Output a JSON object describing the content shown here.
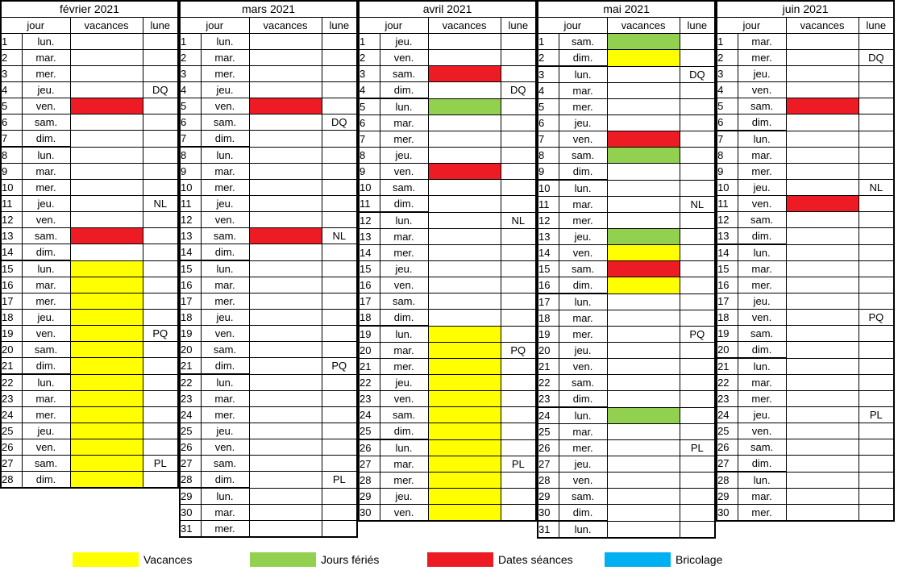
{
  "colors": {
    "vacances": "#ffff00",
    "ferie": "#92d050",
    "seance": "#ed1c24",
    "bricolage": "#00b0f0"
  },
  "headers": {
    "jour": "jour",
    "vacances": "vacances",
    "lune": "lune"
  },
  "legend": [
    {
      "key": "vacances",
      "label": "Vacances"
    },
    {
      "key": "ferie",
      "label": "Jours fériés"
    },
    {
      "key": "seance",
      "label": "Dates séances"
    },
    {
      "key": "bricolage",
      "label": "Bricolage"
    }
  ],
  "months": [
    {
      "title": "février 2021",
      "days": [
        [
          1,
          "lun.",
          "",
          ""
        ],
        [
          2,
          "mar.",
          "",
          ""
        ],
        [
          3,
          "mer.",
          "",
          ""
        ],
        [
          4,
          "jeu.",
          "",
          "DQ"
        ],
        [
          5,
          "ven.",
          "seance",
          ""
        ],
        [
          6,
          "sam.",
          "",
          ""
        ],
        [
          7,
          "dim.",
          "",
          ""
        ],
        [
          8,
          "lun.",
          "",
          ""
        ],
        [
          9,
          "mar.",
          "",
          ""
        ],
        [
          10,
          "mer.",
          "",
          ""
        ],
        [
          11,
          "jeu.",
          "",
          "NL"
        ],
        [
          12,
          "ven.",
          "",
          ""
        ],
        [
          13,
          "sam.",
          "seance",
          ""
        ],
        [
          14,
          "dim.",
          "",
          ""
        ],
        [
          15,
          "lun.",
          "vacances",
          ""
        ],
        [
          16,
          "mar.",
          "vacances",
          ""
        ],
        [
          17,
          "mer.",
          "vacances",
          ""
        ],
        [
          18,
          "jeu.",
          "vacances",
          ""
        ],
        [
          19,
          "ven.",
          "vacances",
          "PQ"
        ],
        [
          20,
          "sam.",
          "vacances",
          ""
        ],
        [
          21,
          "dim.",
          "vacances",
          ""
        ],
        [
          22,
          "lun.",
          "vacances",
          ""
        ],
        [
          23,
          "mar.",
          "vacances",
          ""
        ],
        [
          24,
          "mer.",
          "vacances",
          ""
        ],
        [
          25,
          "jeu.",
          "vacances",
          ""
        ],
        [
          26,
          "ven.",
          "vacances",
          ""
        ],
        [
          27,
          "sam.",
          "vacances",
          "PL"
        ],
        [
          28,
          "dim.",
          "vacances",
          ""
        ]
      ]
    },
    {
      "title": "mars 2021",
      "days": [
        [
          1,
          "lun.",
          "",
          ""
        ],
        [
          2,
          "mar.",
          "",
          ""
        ],
        [
          3,
          "mer.",
          "",
          ""
        ],
        [
          4,
          "jeu.",
          "",
          ""
        ],
        [
          5,
          "ven.",
          "seance",
          ""
        ],
        [
          6,
          "sam.",
          "",
          "DQ"
        ],
        [
          7,
          "dim.",
          "",
          ""
        ],
        [
          8,
          "lun.",
          "",
          ""
        ],
        [
          9,
          "mar.",
          "",
          ""
        ],
        [
          10,
          "mer.",
          "",
          ""
        ],
        [
          11,
          "jeu.",
          "",
          ""
        ],
        [
          12,
          "ven.",
          "",
          ""
        ],
        [
          13,
          "sam.",
          "seance",
          "NL"
        ],
        [
          14,
          "dim.",
          "",
          ""
        ],
        [
          15,
          "lun.",
          "",
          ""
        ],
        [
          16,
          "mar.",
          "",
          ""
        ],
        [
          17,
          "mer.",
          "",
          ""
        ],
        [
          18,
          "jeu.",
          "",
          ""
        ],
        [
          19,
          "ven.",
          "",
          ""
        ],
        [
          20,
          "sam.",
          "",
          ""
        ],
        [
          21,
          "dim.",
          "",
          "PQ"
        ],
        [
          22,
          "lun.",
          "",
          ""
        ],
        [
          23,
          "mar.",
          "",
          ""
        ],
        [
          24,
          "mer.",
          "",
          ""
        ],
        [
          25,
          "jeu.",
          "",
          ""
        ],
        [
          26,
          "ven.",
          "",
          ""
        ],
        [
          27,
          "sam.",
          "",
          ""
        ],
        [
          28,
          "dim.",
          "",
          "PL"
        ],
        [
          29,
          "lun.",
          "",
          ""
        ],
        [
          30,
          "mar.",
          "",
          ""
        ],
        [
          31,
          "mer.",
          "",
          ""
        ]
      ]
    },
    {
      "title": "avril 2021",
      "days": [
        [
          1,
          "jeu.",
          "",
          ""
        ],
        [
          2,
          "ven.",
          "",
          ""
        ],
        [
          3,
          "sam.",
          "seance",
          ""
        ],
        [
          4,
          "dim.",
          "",
          "DQ"
        ],
        [
          5,
          "lun.",
          "ferie",
          ""
        ],
        [
          6,
          "mar.",
          "",
          ""
        ],
        [
          7,
          "mer.",
          "",
          ""
        ],
        [
          8,
          "jeu.",
          "",
          ""
        ],
        [
          9,
          "ven.",
          "seance",
          ""
        ],
        [
          10,
          "sam.",
          "",
          ""
        ],
        [
          11,
          "dim.",
          "",
          ""
        ],
        [
          12,
          "lun.",
          "",
          "NL"
        ],
        [
          13,
          "mar.",
          "",
          ""
        ],
        [
          14,
          "mer.",
          "",
          ""
        ],
        [
          15,
          "jeu.",
          "",
          ""
        ],
        [
          16,
          "ven.",
          "",
          ""
        ],
        [
          17,
          "sam.",
          "",
          ""
        ],
        [
          18,
          "dim.",
          "",
          ""
        ],
        [
          19,
          "lun.",
          "vacances",
          ""
        ],
        [
          20,
          "mar.",
          "vacances",
          "PQ"
        ],
        [
          21,
          "mer.",
          "vacances",
          ""
        ],
        [
          22,
          "jeu.",
          "vacances",
          ""
        ],
        [
          23,
          "ven.",
          "vacances",
          ""
        ],
        [
          24,
          "sam.",
          "vacances",
          ""
        ],
        [
          25,
          "dim.",
          "vacances",
          ""
        ],
        [
          26,
          "lun.",
          "vacances",
          ""
        ],
        [
          27,
          "mar.",
          "vacances",
          "PL"
        ],
        [
          28,
          "mer.",
          "vacances",
          ""
        ],
        [
          29,
          "jeu.",
          "vacances",
          ""
        ],
        [
          30,
          "ven.",
          "vacances",
          ""
        ]
      ]
    },
    {
      "title": "mai 2021",
      "days": [
        [
          1,
          "sam.",
          "ferie",
          ""
        ],
        [
          2,
          "dim.",
          "vacances",
          ""
        ],
        [
          3,
          "lun.",
          "",
          "DQ"
        ],
        [
          4,
          "mar.",
          "",
          ""
        ],
        [
          5,
          "mer.",
          "",
          ""
        ],
        [
          6,
          "jeu.",
          "",
          ""
        ],
        [
          7,
          "ven.",
          "seance",
          ""
        ],
        [
          8,
          "sam.",
          "ferie",
          ""
        ],
        [
          9,
          "dim.",
          "",
          ""
        ],
        [
          10,
          "lun.",
          "",
          ""
        ],
        [
          11,
          "mar.",
          "",
          "NL"
        ],
        [
          12,
          "mer.",
          "",
          ""
        ],
        [
          13,
          "jeu.",
          "ferie",
          ""
        ],
        [
          14,
          "ven.",
          "vacances",
          ""
        ],
        [
          15,
          "sam.",
          "seance",
          ""
        ],
        [
          16,
          "dim.",
          "vacances",
          ""
        ],
        [
          17,
          "lun.",
          "",
          ""
        ],
        [
          18,
          "mar.",
          "",
          ""
        ],
        [
          19,
          "mer.",
          "",
          "PQ"
        ],
        [
          20,
          "jeu.",
          "",
          ""
        ],
        [
          21,
          "ven.",
          "",
          ""
        ],
        [
          22,
          "sam.",
          "",
          ""
        ],
        [
          23,
          "dim.",
          "",
          ""
        ],
        [
          24,
          "lun.",
          "ferie",
          ""
        ],
        [
          25,
          "mar.",
          "",
          ""
        ],
        [
          26,
          "mer.",
          "",
          "PL"
        ],
        [
          27,
          "jeu.",
          "",
          ""
        ],
        [
          28,
          "ven.",
          "",
          ""
        ],
        [
          29,
          "sam.",
          "",
          ""
        ],
        [
          30,
          "dim.",
          "",
          ""
        ],
        [
          31,
          "lun.",
          "",
          ""
        ]
      ]
    },
    {
      "title": "juin 2021",
      "days": [
        [
          1,
          "mar.",
          "",
          ""
        ],
        [
          2,
          "mer.",
          "",
          "DQ"
        ],
        [
          3,
          "jeu.",
          "",
          ""
        ],
        [
          4,
          "ven.",
          "",
          ""
        ],
        [
          5,
          "sam.",
          "seance",
          ""
        ],
        [
          6,
          "dim.",
          "",
          ""
        ],
        [
          7,
          "lun.",
          "",
          ""
        ],
        [
          8,
          "mar.",
          "",
          ""
        ],
        [
          9,
          "mer.",
          "",
          ""
        ],
        [
          10,
          "jeu.",
          "",
          "NL"
        ],
        [
          11,
          "ven.",
          "seance",
          ""
        ],
        [
          12,
          "sam.",
          "",
          ""
        ],
        [
          13,
          "dim.",
          "",
          ""
        ],
        [
          14,
          "lun.",
          "",
          ""
        ],
        [
          15,
          "mar.",
          "",
          ""
        ],
        [
          16,
          "mer.",
          "",
          ""
        ],
        [
          17,
          "jeu.",
          "",
          ""
        ],
        [
          18,
          "ven.",
          "",
          "PQ"
        ],
        [
          19,
          "sam.",
          "",
          ""
        ],
        [
          20,
          "dim.",
          "",
          ""
        ],
        [
          21,
          "lun.",
          "",
          ""
        ],
        [
          22,
          "mar.",
          "",
          ""
        ],
        [
          23,
          "mer.",
          "",
          ""
        ],
        [
          24,
          "jeu.",
          "",
          "PL"
        ],
        [
          25,
          "ven.",
          "",
          ""
        ],
        [
          26,
          "sam.",
          "",
          ""
        ],
        [
          27,
          "dim.",
          "",
          ""
        ],
        [
          28,
          "lun.",
          "",
          ""
        ],
        [
          29,
          "mar.",
          "",
          ""
        ],
        [
          30,
          "mer.",
          "",
          ""
        ]
      ]
    }
  ]
}
